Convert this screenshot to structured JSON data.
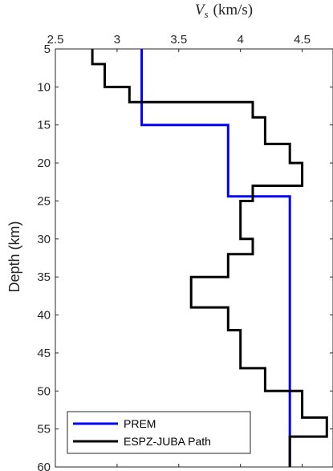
{
  "chart_data": {
    "type": "line",
    "title": "",
    "xlabel_var": "V",
    "xlabel_sub": "s",
    "xlabel_unit": "(km/s)",
    "xlabel_position": "top",
    "ylabel": "Depth (km)",
    "xlim": [
      2.5,
      4.75
    ],
    "ylim": [
      5,
      60
    ],
    "y_reversed": true,
    "x_ticks": [
      2.5,
      3,
      3.5,
      4,
      4.5
    ],
    "x_tick_labels": [
      "2.5",
      "3",
      "3.5",
      "4",
      "4.5"
    ],
    "y_ticks": [
      5,
      10,
      15,
      20,
      25,
      30,
      35,
      40,
      45,
      50,
      55,
      60
    ],
    "y_tick_labels": [
      "5",
      "10",
      "15",
      "20",
      "25",
      "30",
      "35",
      "40",
      "45",
      "50",
      "55",
      "60"
    ],
    "grid": false,
    "legend_position": "bottom-left",
    "series": [
      {
        "name": "PREM",
        "color": "#0000ff",
        "x": [
          3.2,
          3.2,
          3.9,
          3.9,
          4.4,
          4.4
        ],
        "y": [
          5,
          15,
          15,
          24.4,
          24.4,
          60
        ]
      },
      {
        "name": "ESPZ-JUBA Path",
        "color": "#000000",
        "x": [
          2.8,
          2.8,
          2.9,
          2.9,
          3.1,
          3.1,
          4.1,
          4.1,
          4.2,
          4.2,
          4.4,
          4.4,
          4.5,
          4.5,
          4.1,
          4.1,
          4.0,
          4.0,
          4.1,
          4.1,
          3.9,
          3.9,
          3.6,
          3.6,
          3.9,
          3.9,
          4.0,
          4.0,
          4.2,
          4.2,
          4.5,
          4.5,
          4.7,
          4.7,
          4.4,
          4.4
        ],
        "y": [
          5,
          7,
          7,
          10,
          10,
          12,
          12,
          14,
          14,
          17.5,
          17.5,
          20,
          20,
          23,
          23,
          25,
          25,
          30,
          30,
          32,
          32,
          35,
          35,
          39,
          39,
          42,
          42,
          47,
          47,
          50,
          50,
          53.5,
          53.5,
          56,
          56,
          60
        ]
      }
    ]
  }
}
